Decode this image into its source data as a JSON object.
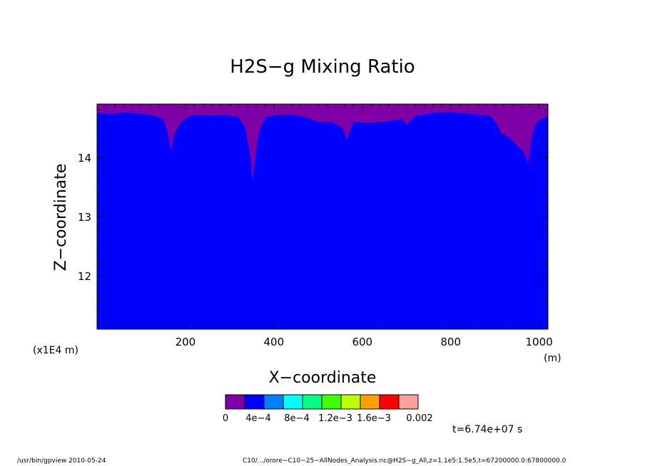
{
  "chart_data": {
    "type": "heatmap",
    "title": "H2S−g Mixing Ratio",
    "xlabel": "X−coordinate",
    "ylabel": "Z−coordinate",
    "x_unit": "(m)",
    "y_scale_note": "(x1E4 m)",
    "xlim": [
      0,
      1020
    ],
    "ylim": [
      11.1,
      14.9
    ],
    "x_ticks": [
      200,
      400,
      600,
      800,
      1000
    ],
    "y_ticks": [
      12,
      13,
      14
    ],
    "x_tick_labels": [
      "200",
      "400",
      "600",
      "800",
      "1000"
    ],
    "y_tick_labels": [
      "12",
      "13",
      "14"
    ],
    "dominant_level": "0 to 4e-4",
    "surface_profile": {
      "description": "upper boundary of blue region (z, x1E4 m) at given x",
      "x": [
        0,
        30,
        60,
        90,
        120,
        150,
        160,
        168,
        175,
        190,
        210,
        230,
        260,
        290,
        320,
        335,
        345,
        352,
        358,
        365,
        380,
        410,
        440,
        470,
        500,
        530,
        555,
        565,
        580,
        610,
        650,
        690,
        700,
        720,
        760,
        800,
        850,
        890,
        905,
        915,
        930,
        950,
        965,
        975,
        985,
        995,
        1005,
        1020
      ],
      "z": [
        14.75,
        14.73,
        14.76,
        14.74,
        14.72,
        14.65,
        14.4,
        14.1,
        14.4,
        14.6,
        14.7,
        14.72,
        14.7,
        14.72,
        14.68,
        14.5,
        14.1,
        13.6,
        14.0,
        14.4,
        14.68,
        14.72,
        14.72,
        14.68,
        14.6,
        14.6,
        14.5,
        14.3,
        14.6,
        14.58,
        14.6,
        14.65,
        14.55,
        14.7,
        14.75,
        14.76,
        14.73,
        14.7,
        14.55,
        14.4,
        14.35,
        14.2,
        14.1,
        13.9,
        14.4,
        14.6,
        14.65,
        14.7
      ]
    },
    "colorbar": {
      "colors": [
        "#7f00a6",
        "#0000ff",
        "#0080ff",
        "#00ffff",
        "#00ff80",
        "#40ff00",
        "#c0ff00",
        "#ffa000",
        "#ff0000",
        "#ffa0a0"
      ],
      "labels": [
        "0",
        "4e−4",
        "8e−4",
        "1.2e−3",
        "1.6e−3",
        "0.002"
      ]
    },
    "fill_colors": {
      "above": "#7f00a6",
      "below": "#0000ff"
    }
  },
  "time_label": "t=6.74e+07 s",
  "footer": {
    "left": "/usr/bin/gpview   2010-05-24",
    "right": "C10/.../orore−C10−25−AllNodes_Analysis.nc@H2S−g_All,z=1.1e5:1.5e5,t=67200000.0:67800000.0"
  }
}
